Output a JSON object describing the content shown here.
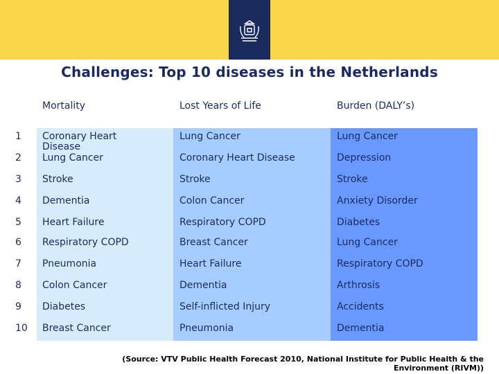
{
  "title": "Challenges: Top 10 diseases in the Netherlands",
  "headers": [
    "Mortality",
    "Lost Years of Life",
    "Burden (DALY’s)"
  ],
  "rows": [
    {
      "rank": "1",
      "mortality": "Coronary Heart Disease",
      "lost_years": "Lung Cancer",
      "burden": "Lung Cancer"
    },
    {
      "rank": "2",
      "mortality": "Lung Cancer",
      "lost_years": "Coronary Heart Disease",
      "burden": "Depression"
    },
    {
      "rank": "3",
      "mortality": "Stroke",
      "lost_years": "Stroke",
      "burden": "Stroke"
    },
    {
      "rank": "4",
      "mortality": "Dementia",
      "lost_years": "Colon Cancer",
      "burden": "Anxiety Disorder"
    },
    {
      "rank": "5",
      "mortality": "Heart Failure",
      "lost_years": "Respiratory COPD",
      "burden": "Diabetes"
    },
    {
      "rank": "6",
      "mortality": "Respiratory COPD",
      "lost_years": "Breast Cancer",
      "burden": "Lung Cancer"
    },
    {
      "rank": "7",
      "mortality": "Pneumonia",
      "lost_years": "Heart Failure",
      "burden": "Respiratory COPD"
    },
    {
      "rank": "8",
      "mortality": "Colon Cancer",
      "lost_years": "Dementia",
      "burden": "Arthrosis"
    },
    {
      "rank": "9",
      "mortality": "Diabetes",
      "lost_years": "Self-inflicted Injury",
      "burden": "Accidents"
    },
    {
      "rank": "10",
      "mortality": "Breast Cancer",
      "lost_years": "Pneumonia",
      "burden": "Dementia"
    }
  ],
  "source_line1": "(Source: VTV Public Health Forecast 2010, National Institute for Public Health & the",
  "source_line2": "Environment (RIVM))",
  "colors": {
    "banner": "#f9d649",
    "emblem": "#1a2a5c",
    "col1": "#d6ecfb",
    "col2": "#a7ccff",
    "col3": "#6999ff"
  }
}
